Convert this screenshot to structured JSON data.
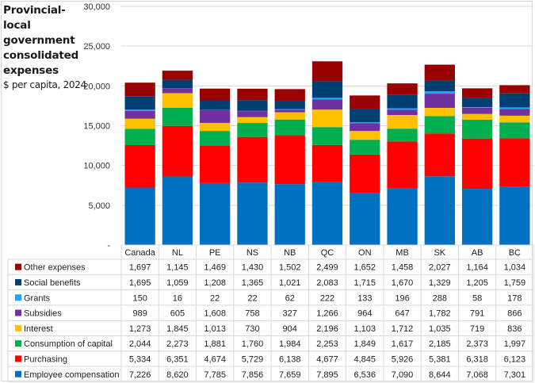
{
  "chart_data": {
    "type": "bar",
    "stacked": true,
    "title": "Provincial-local government consolidated expenses",
    "subtitle": "$ per capita, 2024",
    "xlabel": "",
    "ylabel": "",
    "ylim": [
      0,
      30000
    ],
    "yticks": [
      0,
      5000,
      10000,
      15000,
      20000,
      25000,
      30000
    ],
    "ytick_labels": [
      "-",
      "5,000",
      "10,000",
      "15,000",
      "20,000",
      "25,000",
      "30,000"
    ],
    "grid": true,
    "legend": "table-below",
    "categories": [
      "Canada",
      "NL",
      "PE",
      "NS",
      "NB",
      "QC",
      "ON",
      "MB",
      "SK",
      "AB",
      "BC"
    ],
    "series": [
      {
        "name": "Employee compensation",
        "color": "#0070C0",
        "values": [
          7226,
          8620,
          7785,
          7856,
          7659,
          7895,
          6536,
          7090,
          8644,
          7068,
          7301
        ],
        "labels": [
          "7,226",
          "8,620",
          "7,785",
          "7,856",
          "7,659",
          "7,895",
          "6,536",
          "7,090",
          "8,644",
          "7,068",
          "7,301"
        ]
      },
      {
        "name": "Purchasing",
        "color": "#FF0000",
        "values": [
          5334,
          6351,
          4674,
          5729,
          6138,
          4677,
          4845,
          5926,
          5381,
          6318,
          6123
        ],
        "labels": [
          "5,334",
          "6,351",
          "4,674",
          "5,729",
          "6,138",
          "4,677",
          "4,845",
          "5,926",
          "5,381",
          "6,318",
          "6,123"
        ]
      },
      {
        "name": "Consumption of capital",
        "color": "#00B050",
        "values": [
          2044,
          2273,
          1881,
          1760,
          1984,
          2253,
          1849,
          1617,
          2185,
          2373,
          1997
        ],
        "labels": [
          "2,044",
          "2,273",
          "1,881",
          "1,760",
          "1,984",
          "2,253",
          "1,849",
          "1,617",
          "2,185",
          "2,373",
          "1,997"
        ]
      },
      {
        "name": "Interest",
        "color": "#FFC000",
        "values": [
          1273,
          1845,
          1013,
          730,
          904,
          2196,
          1103,
          1712,
          1035,
          719,
          836
        ],
        "labels": [
          "1,273",
          "1,845",
          "1,013",
          "730",
          "904",
          "2,196",
          "1,103",
          "1,712",
          "1,035",
          "719",
          "836"
        ]
      },
      {
        "name": "Subsidies",
        "color": "#7030A0",
        "values": [
          989,
          605,
          1608,
          758,
          327,
          1266,
          964,
          647,
          1782,
          791,
          866
        ],
        "labels": [
          "989",
          "605",
          "1,608",
          "758",
          "327",
          "1,266",
          "964",
          "647",
          "1,782",
          "791",
          "866"
        ]
      },
      {
        "name": "Grants",
        "color": "#1EA7F5",
        "values": [
          150,
          16,
          22,
          22,
          62,
          222,
          133,
          196,
          288,
          58,
          178
        ],
        "labels": [
          "150",
          "16",
          "22",
          "22",
          "62",
          "222",
          "133",
          "196",
          "288",
          "58",
          "178"
        ]
      },
      {
        "name": "Social benefits",
        "color": "#003F72",
        "values": [
          1695,
          1059,
          1208,
          1365,
          1021,
          2083,
          1715,
          1670,
          1329,
          1205,
          1759
        ],
        "labels": [
          "1,695",
          "1,059",
          "1,208",
          "1,365",
          "1,021",
          "2,083",
          "1,715",
          "1,670",
          "1,329",
          "1,205",
          "1,759"
        ]
      },
      {
        "name": "Other expenses",
        "color": "#990000",
        "values": [
          1697,
          1145,
          1469,
          1430,
          1502,
          2499,
          1652,
          1458,
          2027,
          1164,
          1034
        ],
        "labels": [
          "1,697",
          "1,145",
          "1,469",
          "1,430",
          "1,502",
          "2,499",
          "1,652",
          "1,458",
          "2,027",
          "1,164",
          "1,034"
        ]
      }
    ]
  }
}
